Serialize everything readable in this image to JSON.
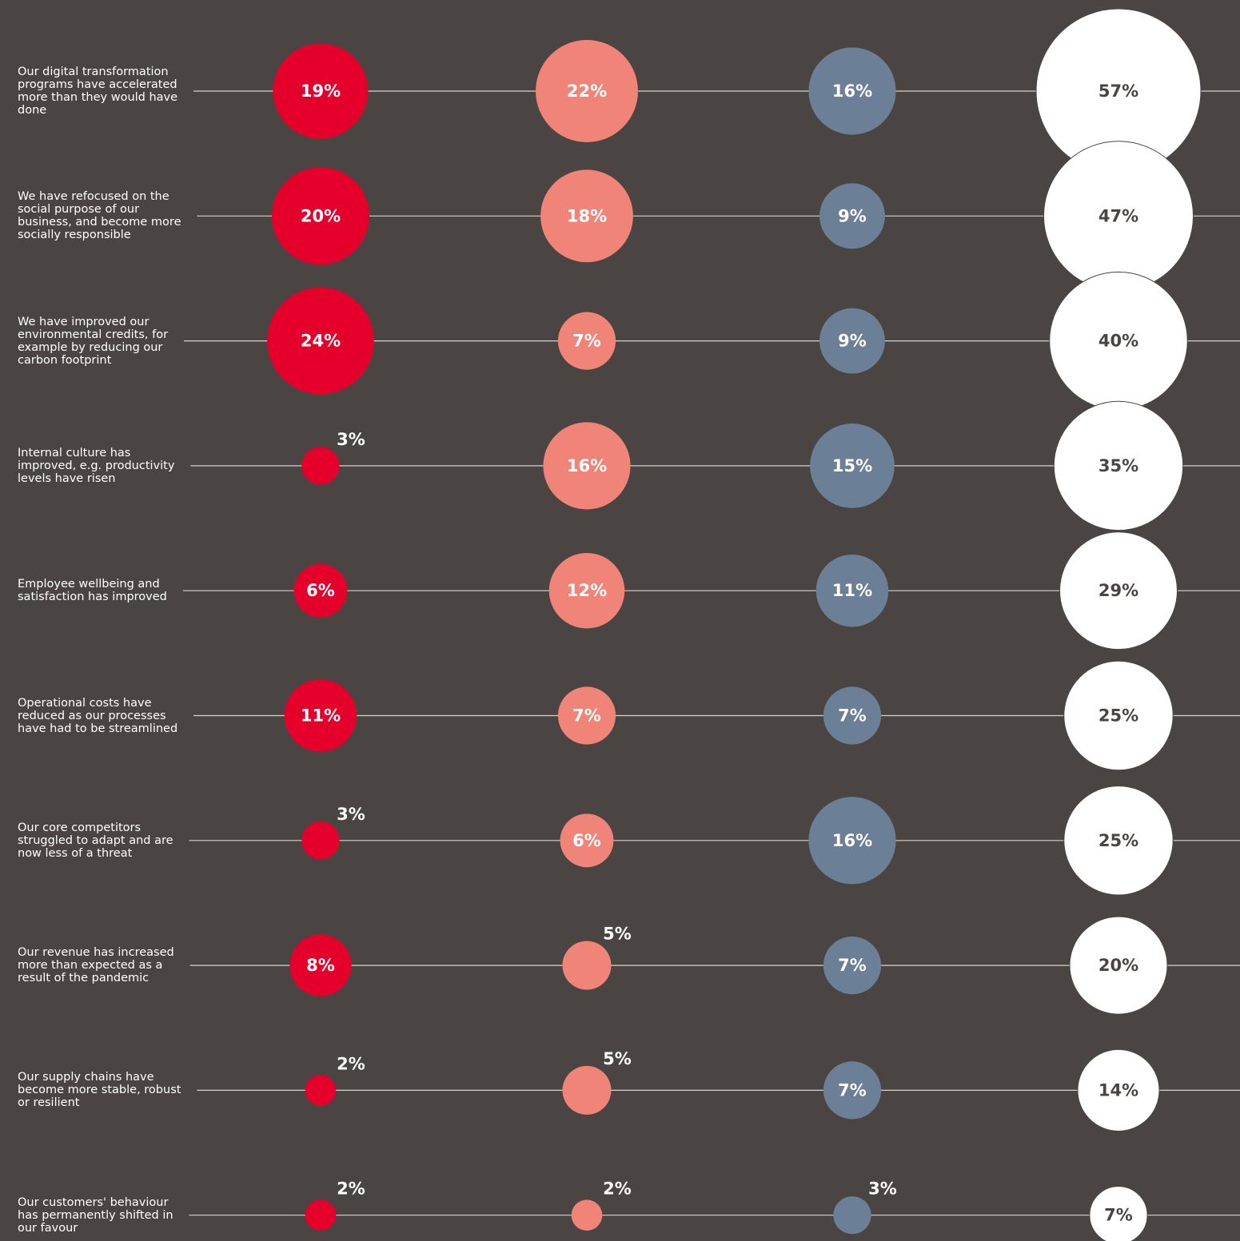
{
  "chart_data": {
    "type": "bubble",
    "categories": [
      "Our digital transformation programs have accelerated more than they would have done",
      "We have refocused on the social purpose of our business, and become more socially responsible",
      "We have improved our environmental credits, for example by reducing our carbon footprint",
      "Internal culture has improved, e.g. productivity levels have risen",
      "Employee wellbeing and satisfaction has improved",
      "Operational costs have reduced as our processes have had to be streamlined",
      "Our core competitors struggled to adapt and are now less of a threat",
      "Our revenue has increased more than expected as a result of the pandemic",
      "Our supply chains have become more stable, robust or resilient",
      "Our customers' behaviour has permanently shifted in our favour"
    ],
    "series": [
      {
        "color": "#e4002b",
        "values": [
          19,
          20,
          24,
          3,
          6,
          11,
          3,
          8,
          2,
          2
        ],
        "value_labels": [
          "19%",
          "20%",
          "24%",
          "3%",
          "6%",
          "11%",
          "3%",
          "8%",
          "2%",
          "2%"
        ]
      },
      {
        "color": "#f08478",
        "values": [
          22,
          18,
          7,
          16,
          12,
          7,
          6,
          5,
          5,
          2
        ],
        "value_labels": [
          "22%",
          "18%",
          "7%",
          "16%",
          "12%",
          "7%",
          "6%",
          "5%",
          "5%",
          "2%"
        ]
      },
      {
        "color": "#6b7f96",
        "values": [
          16,
          9,
          9,
          15,
          11,
          7,
          16,
          7,
          7,
          3
        ],
        "value_labels": [
          "16%",
          "9%",
          "9%",
          "15%",
          "11%",
          "7%",
          "16%",
          "7%",
          "7%",
          "3%"
        ]
      },
      {
        "color": "#ffffff",
        "values": [
          57,
          47,
          40,
          35,
          29,
          25,
          25,
          20,
          14,
          7
        ],
        "value_labels": [
          "57%",
          "47%",
          "40%",
          "35%",
          "29%",
          "25%",
          "25%",
          "20%",
          "14%",
          "7%"
        ]
      }
    ]
  }
}
